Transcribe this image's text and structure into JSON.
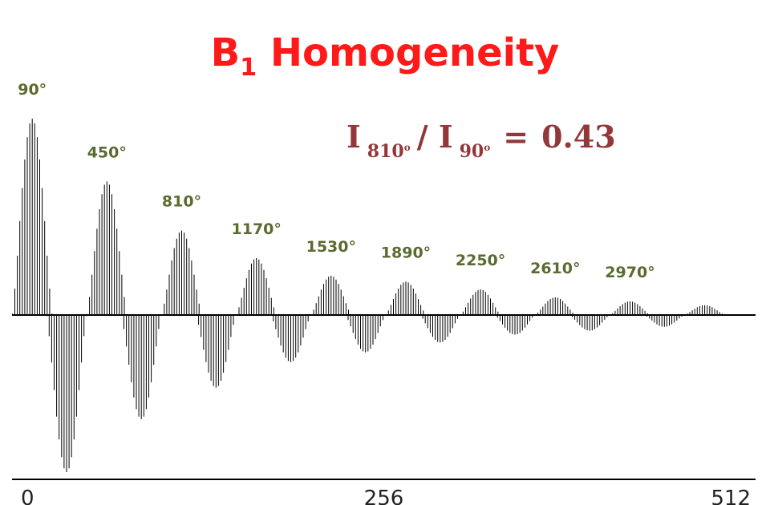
{
  "title": {
    "main": "B",
    "sub": "1",
    "rest": " Homogeneity"
  },
  "ratio": {
    "lhs": "I",
    "sub1": "810",
    "sup1": "o",
    "slash": "/ I",
    "sub2": "90",
    "sup2": "o",
    "eq": "=",
    "value": "0.43"
  },
  "colors": {
    "title": "#ff1a1a",
    "ratio": "#93383a",
    "peak_labels": "#5a6b2f",
    "signal": "#000000",
    "axis": "#000000"
  },
  "chart_data": {
    "type": "bar",
    "title": "",
    "xlabel": "",
    "ylabel": "",
    "xlim": [
      0,
      512
    ],
    "ylim": [
      -1.0,
      1.0
    ],
    "x_ticks": [
      "0",
      "256",
      "512"
    ],
    "grid": false,
    "legend": "none",
    "series": [
      {
        "peaks": [
          {
            "angle": "90°",
            "amplitude": 1.0
          },
          {
            "angle": "450°",
            "amplitude": 0.68
          },
          {
            "angle": "810°",
            "amplitude": 0.43
          },
          {
            "angle": "1170°",
            "amplitude": 0.29
          },
          {
            "angle": "1530°",
            "amplitude": 0.2
          },
          {
            "angle": "1890°",
            "amplitude": 0.17
          },
          {
            "angle": "2250°",
            "amplitude": 0.13
          },
          {
            "angle": "2610°",
            "amplitude": 0.09
          },
          {
            "angle": "2970°",
            "amplitude": 0.07
          },
          {
            "angle": "",
            "amplitude": 0.05
          }
        ],
        "troughs": [
          -0.8,
          -0.53,
          -0.37,
          -0.24,
          -0.19,
          -0.14,
          -0.1,
          -0.08,
          -0.06
        ]
      }
    ]
  }
}
